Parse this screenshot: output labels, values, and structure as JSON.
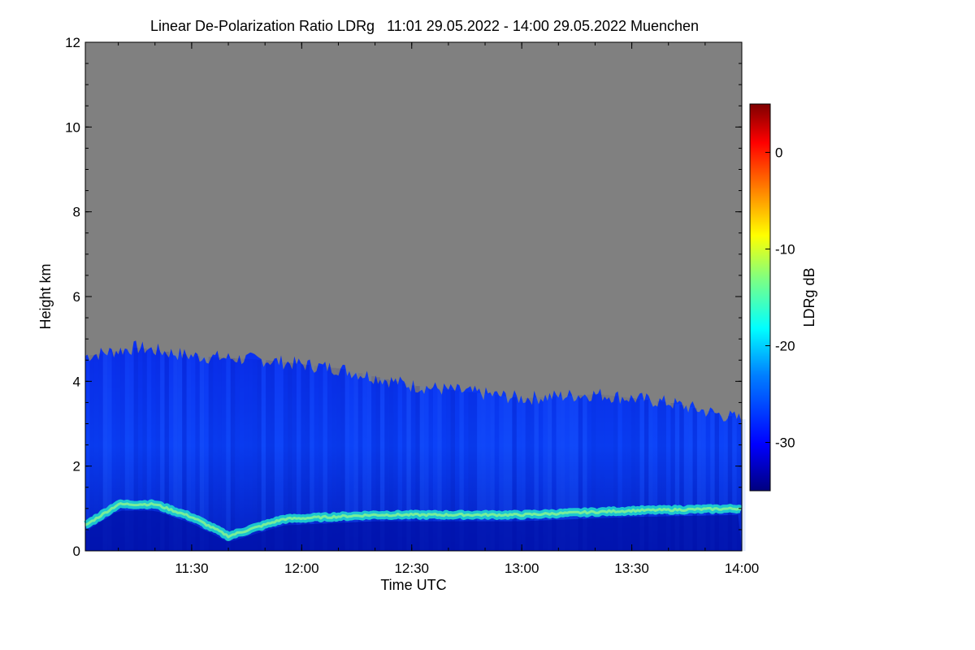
{
  "chart_data": {
    "type": "heatmap",
    "title": "Linear De-Polarization Ratio LDRg   11:01 29.05.2022 - 14:00 29.05.2022 Muenchen",
    "xlabel": "Time UTC",
    "ylabel": "Height km",
    "colorbar_label": "LDRg dB",
    "x_start": "11:01",
    "x_end": "14:00",
    "xlim_minutes_utc": [
      661,
      840
    ],
    "x_ticks": [
      "11:30",
      "12:00",
      "12:30",
      "13:00",
      "13:30",
      "14:00"
    ],
    "ylim": [
      0,
      12
    ],
    "y_ticks": [
      0,
      2,
      4,
      6,
      8,
      10,
      12
    ],
    "colorbar_range": [
      -35,
      5
    ],
    "colorbar_ticks": [
      0,
      -10,
      -20,
      -30
    ],
    "colormap": [
      "#00007f",
      "#0000ff",
      "#0080ff",
      "#00ffff",
      "#80ff80",
      "#ffff00",
      "#ff8000",
      "#ff0000",
      "#7f0000"
    ],
    "no_data_color": "#808080",
    "cloud_top_km": [
      {
        "time": "11:01",
        "height": 4.6
      },
      {
        "time": "11:15",
        "height": 4.8
      },
      {
        "time": "11:30",
        "height": 4.6
      },
      {
        "time": "11:50",
        "height": 4.5
      },
      {
        "time": "12:10",
        "height": 4.3
      },
      {
        "time": "12:30",
        "height": 3.9
      },
      {
        "time": "13:00",
        "height": 3.6
      },
      {
        "time": "13:20",
        "height": 3.7
      },
      {
        "time": "13:40",
        "height": 3.5
      },
      {
        "time": "14:00",
        "height": 3.1
      }
    ],
    "layer_height_km": [
      {
        "time": "11:01",
        "height": 0.6
      },
      {
        "time": "11:10",
        "height": 1.1
      },
      {
        "time": "11:20",
        "height": 1.1
      },
      {
        "time": "11:30",
        "height": 0.8
      },
      {
        "time": "11:40",
        "height": 0.35
      },
      {
        "time": "11:55",
        "height": 0.75
      },
      {
        "time": "12:20",
        "height": 0.85
      },
      {
        "time": "13:00",
        "height": 0.85
      },
      {
        "time": "13:30",
        "height": 0.95
      },
      {
        "time": "14:00",
        "height": 1.0
      }
    ],
    "layer_ldr_db": -20,
    "background_ldr_db": -31
  }
}
